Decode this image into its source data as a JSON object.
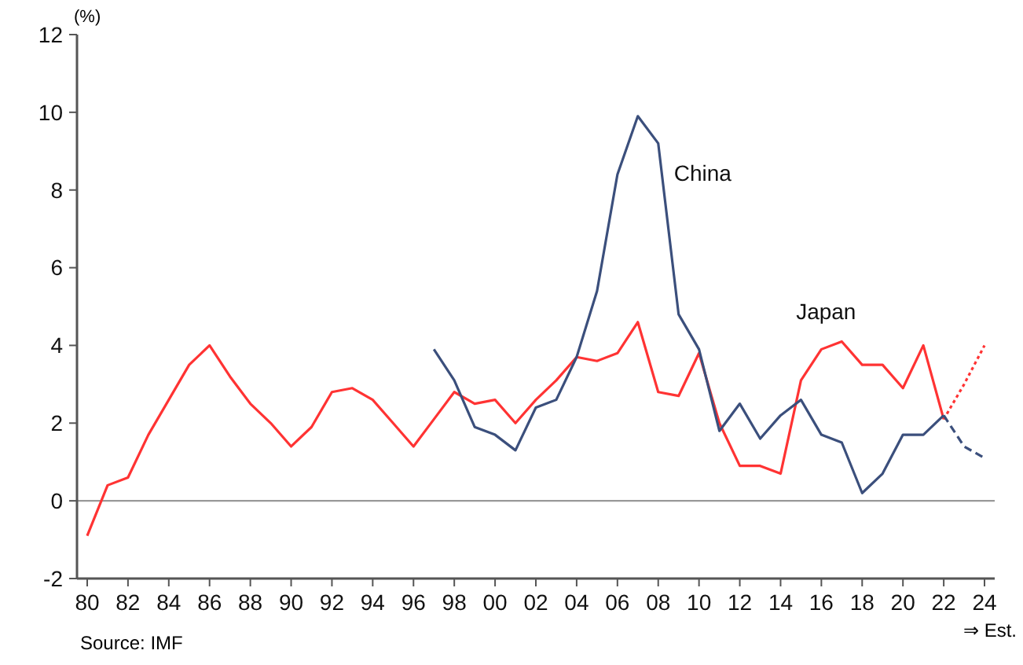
{
  "chart_data": {
    "type": "line",
    "ylabel": "(%)",
    "xlim": [
      1979.5,
      2024.5
    ],
    "ylim": [
      -2,
      12
    ],
    "yticks": [
      -2,
      0,
      2,
      4,
      6,
      8,
      10,
      12
    ],
    "xticks": [
      {
        "value": 1980,
        "label": "80"
      },
      {
        "value": 1982,
        "label": "82"
      },
      {
        "value": 1984,
        "label": "84"
      },
      {
        "value": 1986,
        "label": "86"
      },
      {
        "value": 1988,
        "label": "88"
      },
      {
        "value": 1990,
        "label": "90"
      },
      {
        "value": 1992,
        "label": "92"
      },
      {
        "value": 1994,
        "label": "94"
      },
      {
        "value": 1996,
        "label": "96"
      },
      {
        "value": 1998,
        "label": "98"
      },
      {
        "value": 2000,
        "label": "00"
      },
      {
        "value": 2002,
        "label": "02"
      },
      {
        "value": 2004,
        "label": "04"
      },
      {
        "value": 2006,
        "label": "06"
      },
      {
        "value": 2008,
        "label": "08"
      },
      {
        "value": 2010,
        "label": "10"
      },
      {
        "value": 2012,
        "label": "12"
      },
      {
        "value": 2014,
        "label": "14"
      },
      {
        "value": 2016,
        "label": "16"
      },
      {
        "value": 2018,
        "label": "18"
      },
      {
        "value": 2020,
        "label": "20"
      },
      {
        "value": 2022,
        "label": "22"
      },
      {
        "value": 2024,
        "label": "24"
      }
    ],
    "series": [
      {
        "name": "Japan",
        "color": "#ff3333",
        "line_style": "solid",
        "x": [
          1980,
          1981,
          1982,
          1983,
          1984,
          1985,
          1986,
          1987,
          1988,
          1989,
          1990,
          1991,
          1992,
          1993,
          1994,
          1995,
          1996,
          1997,
          1998,
          1999,
          2000,
          2001,
          2002,
          2003,
          2004,
          2005,
          2006,
          2007,
          2008,
          2009,
          2010,
          2011,
          2012,
          2013,
          2014,
          2015,
          2016,
          2017,
          2018,
          2019,
          2020,
          2021,
          2022
        ],
        "values": [
          -0.9,
          0.4,
          0.6,
          1.7,
          2.6,
          3.5,
          4.0,
          3.2,
          2.5,
          2.0,
          1.4,
          1.9,
          2.8,
          2.9,
          2.6,
          2.0,
          1.4,
          2.1,
          2.8,
          2.5,
          2.6,
          2.0,
          2.6,
          3.1,
          3.7,
          3.6,
          3.8,
          4.6,
          2.8,
          2.7,
          3.8,
          2.0,
          0.9,
          0.9,
          0.7,
          3.1,
          3.9,
          4.1,
          3.5,
          3.5,
          2.9,
          4.0,
          2.1
        ]
      },
      {
        "color": "#ff3333",
        "line_style": "dotted",
        "x": [
          2022,
          2023,
          2024
        ],
        "values": [
          2.1,
          3.0,
          4.0
        ]
      },
      {
        "name": "China",
        "color": "#3b4f7c",
        "line_style": "solid",
        "x": [
          1997,
          1998,
          1999,
          2000,
          2001,
          2002,
          2003,
          2004,
          2005,
          2006,
          2007,
          2008,
          2009,
          2010,
          2011,
          2012,
          2013,
          2014,
          2015,
          2016,
          2017,
          2018,
          2019,
          2020,
          2021,
          2022
        ],
        "values": [
          3.9,
          3.1,
          1.9,
          1.7,
          1.3,
          2.4,
          2.6,
          3.7,
          5.4,
          8.4,
          9.9,
          9.2,
          4.8,
          3.9,
          1.8,
          2.5,
          1.6,
          2.2,
          2.6,
          1.7,
          1.5,
          0.2,
          0.7,
          1.7,
          1.7,
          2.2
        ]
      },
      {
        "color": "#3b4f7c",
        "line_style": "dashed",
        "x": [
          2022,
          2023,
          2024
        ],
        "values": [
          2.2,
          1.4,
          1.1
        ]
      }
    ],
    "ref_lines": [
      {
        "axis": "y",
        "value": 0,
        "color": "#999999"
      }
    ],
    "grid": false,
    "legend": false,
    "marker": "none",
    "annotations": [
      "⇒ Est.",
      "Source: IMF"
    ]
  }
}
